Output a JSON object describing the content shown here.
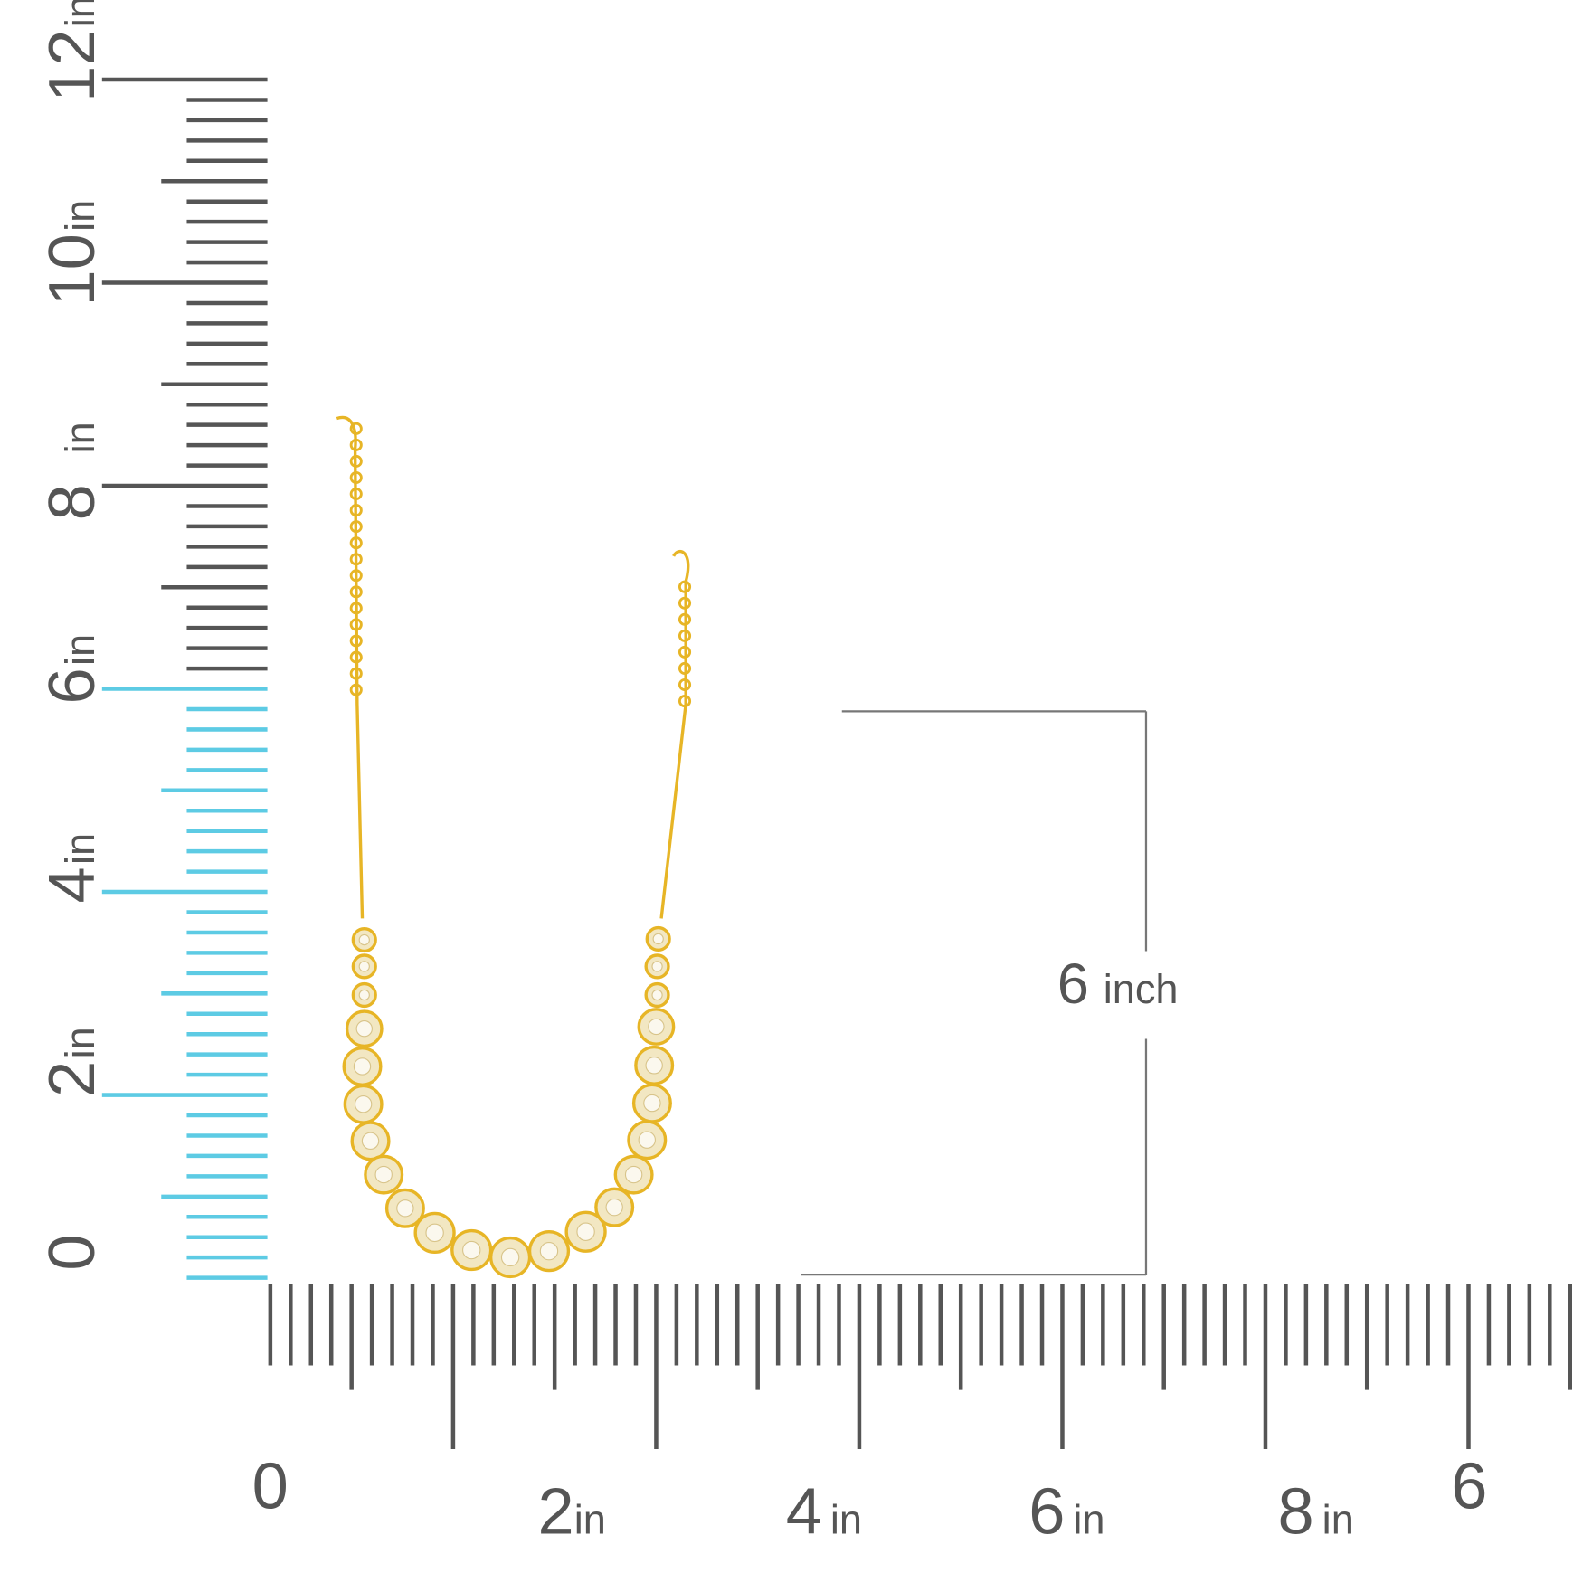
{
  "vertical_ruler": {
    "labels": [
      {
        "number": "0"
      },
      {
        "number": "2",
        "unit": "in"
      },
      {
        "number": "4",
        "unit": "in"
      },
      {
        "number": "6",
        "unit": "in"
      },
      {
        "number": "8",
        "unit": "in"
      },
      {
        "number": "10",
        "unit": "in"
      },
      {
        "number": "12",
        "unit": "in"
      }
    ]
  },
  "horizontal_ruler": {
    "labels": [
      {
        "number": "0"
      },
      {
        "number": "2",
        "unit": "in"
      },
      {
        "number": "4",
        "unit": "in"
      },
      {
        "number": "6",
        "unit": "in"
      },
      {
        "number": "8",
        "unit": "in"
      },
      {
        "number": "6"
      }
    ]
  },
  "dimension": {
    "number": "6",
    "unit": "inch"
  }
}
